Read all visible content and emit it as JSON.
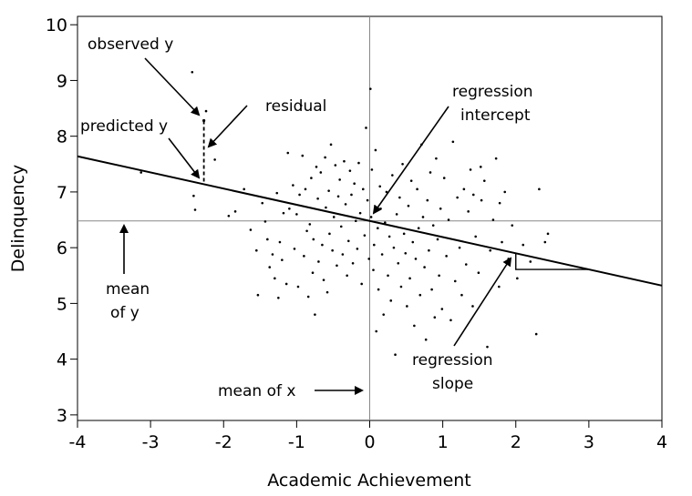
{
  "chart_data": {
    "type": "scatter",
    "xlabel": "Academic Achievement",
    "ylabel": "Delinquency",
    "xlim": [
      -4,
      4
    ],
    "ylim": [
      2.9,
      10.15
    ],
    "xticks": [
      -4,
      -3,
      -2,
      -1,
      0,
      1,
      2,
      3,
      4
    ],
    "yticks": [
      3,
      4,
      5,
      6,
      7,
      8,
      9,
      10
    ],
    "grid": false,
    "mean_x": 0,
    "mean_y": 6.48,
    "regression": {
      "intercept": 6.48,
      "slope": -0.29
    },
    "annotations": {
      "observed_y": "observed y",
      "predicted_y": "predicted y",
      "residual": "residual",
      "regression_intercept_1": "regression",
      "regression_intercept_2": "intercept",
      "regression_slope_1": "regression",
      "regression_slope_2": "slope",
      "mean_of_y_1": "mean",
      "mean_of_y_2": "of y",
      "mean_of_x": "mean of x"
    },
    "highlight_point": {
      "x": -2.27,
      "observed": 8.28,
      "predicted": 7.14
    },
    "points": [
      [
        -3.13,
        7.35
      ],
      [
        -2.43,
        9.15
      ],
      [
        -2.41,
        6.93
      ],
      [
        -2.39,
        6.68
      ],
      [
        -2.24,
        8.45
      ],
      [
        -2.12,
        7.58
      ],
      [
        -1.93,
        6.57
      ],
      [
        -1.84,
        6.65
      ],
      [
        -1.72,
        7.05
      ],
      [
        -1.63,
        6.32
      ],
      [
        -1.55,
        5.95
      ],
      [
        -1.53,
        5.15
      ],
      [
        -1.47,
        6.8
      ],
      [
        -1.43,
        6.47
      ],
      [
        -1.4,
        6.15
      ],
      [
        -1.37,
        5.65
      ],
      [
        -1.33,
        5.88
      ],
      [
        -1.3,
        5.45
      ],
      [
        -1.27,
        6.98
      ],
      [
        -1.25,
        5.1
      ],
      [
        -1.23,
        6.1
      ],
      [
        -1.2,
        5.78
      ],
      [
        -1.18,
        6.62
      ],
      [
        -1.14,
        5.35
      ],
      [
        -1.12,
        7.7
      ],
      [
        -1.1,
        6.7
      ],
      [
        -1.05,
        7.12
      ],
      [
        -1.03,
        5.98
      ],
      [
        -1.0,
        6.6
      ],
      [
        -0.98,
        5.3
      ],
      [
        -0.96,
        6.95
      ],
      [
        -0.94,
        8.55
      ],
      [
        -0.92,
        7.65
      ],
      [
        -0.9,
        5.85
      ],
      [
        -0.88,
        7.05
      ],
      [
        -0.86,
        6.3
      ],
      [
        -0.84,
        5.12
      ],
      [
        -0.82,
        6.42
      ],
      [
        -0.8,
        7.25
      ],
      [
        -0.78,
        5.55
      ],
      [
        -0.77,
        6.15
      ],
      [
        -0.75,
        4.8
      ],
      [
        -0.73,
        7.45
      ],
      [
        -0.71,
        6.88
      ],
      [
        -0.7,
        5.75
      ],
      [
        -0.67,
        7.35
      ],
      [
        -0.65,
        6.05
      ],
      [
        -0.63,
        5.42
      ],
      [
        -0.61,
        7.62
      ],
      [
        -0.6,
        6.72
      ],
      [
        -0.58,
        5.2
      ],
      [
        -0.56,
        7.02
      ],
      [
        -0.55,
        6.25
      ],
      [
        -0.53,
        7.85
      ],
      [
        -0.51,
        5.95
      ],
      [
        -0.49,
        6.55
      ],
      [
        -0.47,
        7.48
      ],
      [
        -0.45,
        5.68
      ],
      [
        -0.43,
        6.92
      ],
      [
        -0.41,
        7.22
      ],
      [
        -0.39,
        6.38
      ],
      [
        -0.37,
        5.88
      ],
      [
        -0.35,
        7.55
      ],
      [
        -0.33,
        6.78
      ],
      [
        -0.31,
        5.5
      ],
      [
        -0.29,
        6.12
      ],
      [
        -0.27,
        7.38
      ],
      [
        -0.25,
        6.95
      ],
      [
        -0.23,
        5.72
      ],
      [
        -0.21,
        7.15
      ],
      [
        -0.19,
        6.48
      ],
      [
        -0.17,
        5.98
      ],
      [
        -0.15,
        7.52
      ],
      [
        -0.13,
        6.62
      ],
      [
        -0.11,
        5.35
      ],
      [
        -0.09,
        7.05
      ],
      [
        -0.07,
        6.22
      ],
      [
        -0.05,
        8.15
      ],
      [
        -0.03,
        6.85
      ],
      [
        -0.01,
        5.8
      ],
      [
        0.01,
        8.85
      ],
      [
        0.02,
        6.55
      ],
      [
        0.03,
        7.4
      ],
      [
        0.05,
        5.6
      ],
      [
        0.06,
        6.05
      ],
      [
        0.08,
        7.75
      ],
      [
        0.09,
        4.5
      ],
      [
        0.11,
        6.35
      ],
      [
        0.12,
        5.25
      ],
      [
        0.14,
        7.1
      ],
      [
        0.15,
        6.7
      ],
      [
        0.17,
        5.88
      ],
      [
        0.19,
        4.8
      ],
      [
        0.21,
        6.45
      ],
      [
        0.23,
        7.0
      ],
      [
        0.25,
        5.5
      ],
      [
        0.27,
        6.2
      ],
      [
        0.29,
        5.05
      ],
      [
        0.31,
        7.3
      ],
      [
        0.33,
        6.0
      ],
      [
        0.35,
        4.08
      ],
      [
        0.37,
        6.6
      ],
      [
        0.39,
        5.72
      ],
      [
        0.41,
        6.9
      ],
      [
        0.43,
        5.3
      ],
      [
        0.45,
        7.5
      ],
      [
        0.47,
        6.25
      ],
      [
        0.49,
        5.9
      ],
      [
        0.51,
        4.95
      ],
      [
        0.53,
        6.75
      ],
      [
        0.55,
        5.45
      ],
      [
        0.57,
        7.2
      ],
      [
        0.59,
        6.1
      ],
      [
        0.61,
        4.6
      ],
      [
        0.63,
        5.8
      ],
      [
        0.65,
        7.05
      ],
      [
        0.67,
        6.35
      ],
      [
        0.69,
        5.15
      ],
      [
        0.71,
        7.85
      ],
      [
        0.73,
        6.55
      ],
      [
        0.75,
        5.65
      ],
      [
        0.77,
        4.35
      ],
      [
        0.79,
        6.85
      ],
      [
        0.81,
        5.95
      ],
      [
        0.83,
        7.35
      ],
      [
        0.85,
        5.25
      ],
      [
        0.87,
        6.4
      ],
      [
        0.89,
        4.75
      ],
      [
        0.91,
        7.6
      ],
      [
        0.93,
        6.15
      ],
      [
        0.95,
        5.5
      ],
      [
        0.97,
        6.7
      ],
      [
        0.99,
        4.9
      ],
      [
        1.02,
        7.25
      ],
      [
        1.05,
        5.85
      ],
      [
        1.08,
        6.5
      ],
      [
        1.11,
        4.7
      ],
      [
        1.14,
        7.9
      ],
      [
        1.17,
        5.4
      ],
      [
        1.2,
        6.9
      ],
      [
        1.23,
        6.0
      ],
      [
        1.26,
        5.15
      ],
      [
        1.29,
        7.05
      ],
      [
        1.32,
        5.7
      ],
      [
        1.35,
        6.65
      ],
      [
        1.38,
        7.4
      ],
      [
        1.41,
        4.95
      ],
      [
        1.45,
        6.2
      ],
      [
        1.49,
        5.55
      ],
      [
        1.53,
        6.85
      ],
      [
        1.57,
        7.2
      ],
      [
        1.61,
        4.22
      ],
      [
        1.65,
        5.95
      ],
      [
        1.69,
        6.5
      ],
      [
        1.73,
        7.6
      ],
      [
        1.77,
        5.3
      ],
      [
        1.81,
        6.1
      ],
      [
        1.85,
        7.0
      ],
      [
        1.9,
        5.8
      ],
      [
        1.95,
        6.4
      ],
      [
        2.02,
        5.45
      ],
      [
        2.1,
        6.05
      ],
      [
        2.2,
        5.75
      ],
      [
        2.28,
        4.45
      ],
      [
        2.32,
        7.05
      ],
      [
        2.4,
        6.1
      ],
      [
        2.44,
        6.25
      ],
      [
        1.42,
        6.95
      ],
      [
        1.52,
        7.45
      ],
      [
        1.78,
        6.8
      ]
    ]
  }
}
